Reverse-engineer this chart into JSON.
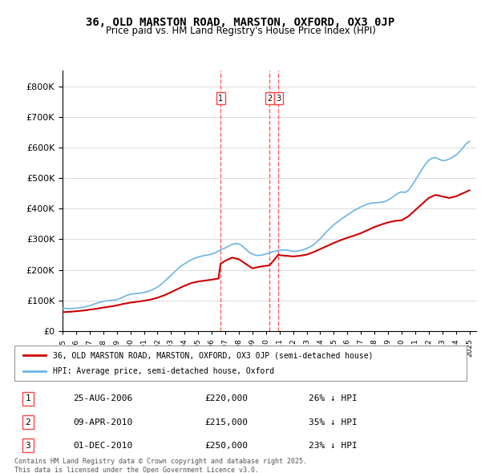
{
  "title": "36, OLD MARSTON ROAD, MARSTON, OXFORD, OX3 0JP",
  "subtitle": "Price paid vs. HM Land Registry's House Price Index (HPI)",
  "legend_line1": "36, OLD MARSTON ROAD, MARSTON, OXFORD, OX3 0JP (semi-detached house)",
  "legend_line2": "HPI: Average price, semi-detached house, Oxford",
  "footer": "Contains HM Land Registry data © Crown copyright and database right 2025.\nThis data is licensed under the Open Government Licence v3.0.",
  "transactions": [
    {
      "label": "1",
      "date": "25-AUG-2006",
      "price": 220000,
      "pct": "26%",
      "dir": "↓",
      "x_year": 2006.65
    },
    {
      "label": "2",
      "date": "09-APR-2010",
      "price": 215000,
      "pct": "35%",
      "dir": "↓",
      "x_year": 2010.27
    },
    {
      "label": "3",
      "date": "01-DEC-2010",
      "price": 250000,
      "pct": "23%",
      "dir": "↓",
      "x_year": 2010.92
    }
  ],
  "hpi_color": "#6cb4e4",
  "price_color": "#cc0000",
  "vline_color": "#ff4444",
  "ylim": [
    0,
    850000
  ],
  "yticks": [
    0,
    100000,
    200000,
    300000,
    400000,
    500000,
    600000,
    700000,
    800000
  ],
  "xlim_start": 1995,
  "xlim_end": 2025.5,
  "hpi_data": {
    "years": [
      1995,
      1995.25,
      1995.5,
      1995.75,
      1996,
      1996.25,
      1996.5,
      1996.75,
      1997,
      1997.25,
      1997.5,
      1997.75,
      1998,
      1998.25,
      1998.5,
      1998.75,
      1999,
      1999.25,
      1999.5,
      1999.75,
      2000,
      2000.25,
      2000.5,
      2000.75,
      2001,
      2001.25,
      2001.5,
      2001.75,
      2002,
      2002.25,
      2002.5,
      2002.75,
      2003,
      2003.25,
      2003.5,
      2003.75,
      2004,
      2004.25,
      2004.5,
      2004.75,
      2005,
      2005.25,
      2005.5,
      2005.75,
      2006,
      2006.25,
      2006.5,
      2006.75,
      2007,
      2007.25,
      2007.5,
      2007.75,
      2008,
      2008.25,
      2008.5,
      2008.75,
      2009,
      2009.25,
      2009.5,
      2009.75,
      2010,
      2010.25,
      2010.5,
      2010.75,
      2011,
      2011.25,
      2011.5,
      2011.75,
      2012,
      2012.25,
      2012.5,
      2012.75,
      2013,
      2013.25,
      2013.5,
      2013.75,
      2014,
      2014.25,
      2014.5,
      2014.75,
      2015,
      2015.25,
      2015.5,
      2015.75,
      2016,
      2016.25,
      2016.5,
      2016.75,
      2017,
      2017.25,
      2017.5,
      2017.75,
      2018,
      2018.25,
      2018.5,
      2018.75,
      2019,
      2019.25,
      2019.5,
      2019.75,
      2020,
      2020.25,
      2020.5,
      2020.75,
      2021,
      2021.25,
      2021.5,
      2021.75,
      2022,
      2022.25,
      2022.5,
      2022.75,
      2023,
      2023.25,
      2023.5,
      2023.75,
      2024,
      2024.25,
      2024.5,
      2024.75,
      2025
    ],
    "values": [
      75000,
      74000,
      73500,
      74000,
      75000,
      76000,
      78000,
      80000,
      83000,
      87000,
      91000,
      94000,
      97000,
      99000,
      100000,
      101000,
      103000,
      107000,
      112000,
      117000,
      120000,
      122000,
      123000,
      124000,
      126000,
      129000,
      133000,
      138000,
      144000,
      152000,
      162000,
      172000,
      182000,
      193000,
      204000,
      213000,
      220000,
      227000,
      233000,
      238000,
      242000,
      245000,
      247000,
      249000,
      252000,
      256000,
      261000,
      267000,
      272000,
      278000,
      283000,
      286000,
      285000,
      278000,
      268000,
      258000,
      252000,
      248000,
      247000,
      249000,
      252000,
      255000,
      259000,
      262000,
      264000,
      265000,
      265000,
      263000,
      261000,
      261000,
      263000,
      266000,
      270000,
      275000,
      282000,
      291000,
      302000,
      314000,
      326000,
      337000,
      347000,
      356000,
      364000,
      372000,
      379000,
      387000,
      394000,
      400000,
      406000,
      411000,
      415000,
      418000,
      419000,
      420000,
      421000,
      423000,
      428000,
      435000,
      443000,
      451000,
      455000,
      453000,
      460000,
      475000,
      492000,
      510000,
      528000,
      545000,
      558000,
      565000,
      567000,
      562000,
      557000,
      558000,
      562000,
      568000,
      575000,
      585000,
      598000,
      612000,
      620000
    ]
  },
  "price_data": {
    "years": [
      1995,
      1995.5,
      1996,
      1996.5,
      1997,
      1997.5,
      1998,
      1998.5,
      1999,
      1999.5,
      2000,
      2000.5,
      2001,
      2001.5,
      2002,
      2002.5,
      2003,
      2003.5,
      2004,
      2004.5,
      2005,
      2005.5,
      2006,
      2006.5,
      2006.65,
      2007,
      2007.5,
      2008,
      2008.5,
      2009,
      2009.5,
      2010.27,
      2010.92,
      2011,
      2011.5,
      2012,
      2012.5,
      2013,
      2013.5,
      2014,
      2014.5,
      2015,
      2015.5,
      2016,
      2016.5,
      2017,
      2017.5,
      2018,
      2018.5,
      2019,
      2019.5,
      2020,
      2020.5,
      2021,
      2021.5,
      2022,
      2022.5,
      2023,
      2023.5,
      2024,
      2024.5,
      2025
    ],
    "values": [
      62000,
      63000,
      65000,
      67000,
      70000,
      73000,
      77000,
      80000,
      84000,
      89000,
      93000,
      96000,
      99000,
      103000,
      109000,
      117000,
      127000,
      138000,
      148000,
      157000,
      162000,
      165000,
      168000,
      172000,
      220000,
      230000,
      240000,
      235000,
      220000,
      205000,
      210000,
      215000,
      250000,
      248000,
      246000,
      244000,
      246000,
      250000,
      258000,
      268000,
      278000,
      288000,
      297000,
      305000,
      312000,
      320000,
      330000,
      340000,
      348000,
      355000,
      360000,
      362000,
      375000,
      395000,
      415000,
      435000,
      445000,
      440000,
      435000,
      440000,
      450000,
      460000
    ]
  }
}
